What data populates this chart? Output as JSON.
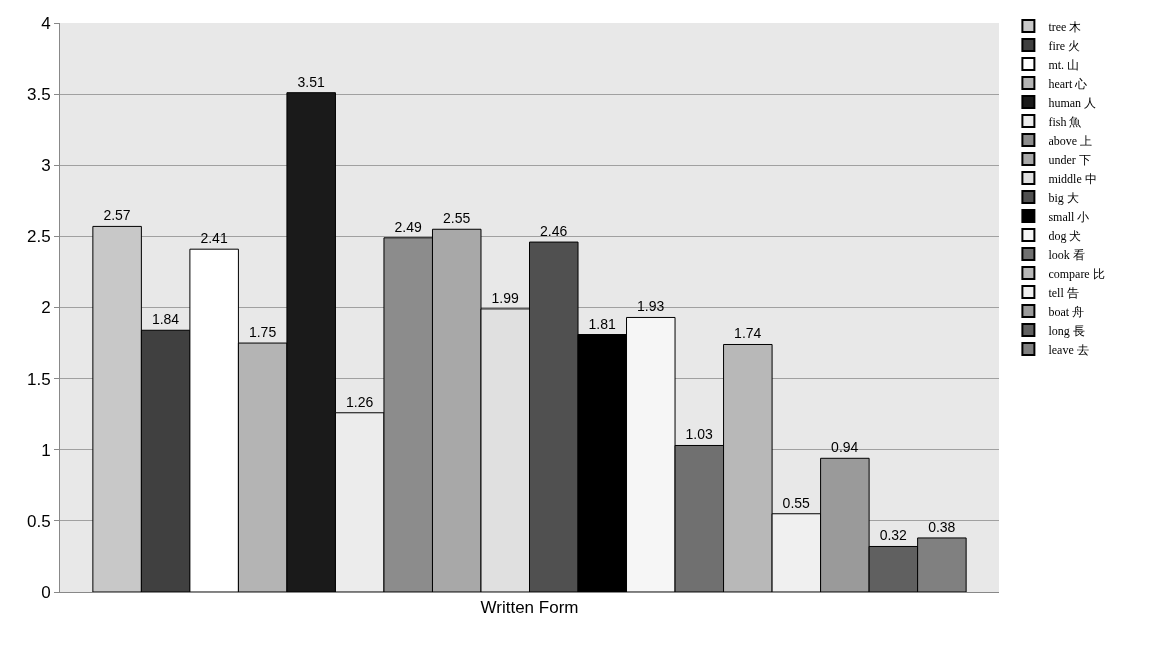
{
  "chart_data": {
    "type": "bar",
    "categories": [
      "Written Form"
    ],
    "ylim": [
      0,
      4
    ],
    "yticks": [
      0,
      0.5,
      1,
      1.5,
      2,
      2.5,
      3,
      3.5,
      4
    ],
    "grid": "y",
    "legend": "right",
    "data_labels": true,
    "series": [
      {
        "name": "tree 木",
        "color": "#c8c8c8",
        "values": [
          2.57
        ]
      },
      {
        "name": "fire 火",
        "color": "#404040",
        "values": [
          1.84
        ]
      },
      {
        "name": "mt. 山",
        "color": "#ffffff",
        "values": [
          2.41
        ]
      },
      {
        "name": "heart 心",
        "color": "#b4b4b4",
        "values": [
          1.75
        ]
      },
      {
        "name": "human 人",
        "color": "#1a1a1a",
        "values": [
          3.51
        ]
      },
      {
        "name": "fish 魚",
        "color": "#ececec",
        "values": [
          1.26
        ]
      },
      {
        "name": "above 上",
        "color": "#8c8c8c",
        "values": [
          2.49
        ]
      },
      {
        "name": "under 下",
        "color": "#a8a8a8",
        "values": [
          2.55
        ]
      },
      {
        "name": "middle 中",
        "color": "#e0e0e0",
        "values": [
          1.99
        ]
      },
      {
        "name": "big 大",
        "color": "#505050",
        "values": [
          2.46
        ]
      },
      {
        "name": "small 小",
        "color": "#000000",
        "values": [
          1.81
        ]
      },
      {
        "name": "dog 犬",
        "color": "#f6f6f6",
        "values": [
          1.93
        ]
      },
      {
        "name": "look 看",
        "color": "#707070",
        "values": [
          1.03
        ]
      },
      {
        "name": "compare 比",
        "color": "#b8b8b8",
        "values": [
          1.74
        ]
      },
      {
        "name": "tell 告",
        "color": "#f0f0f0",
        "values": [
          0.55
        ]
      },
      {
        "name": "boat 舟",
        "color": "#9a9a9a",
        "values": [
          0.94
        ]
      },
      {
        "name": "long 長",
        "color": "#606060",
        "values": [
          0.32
        ]
      },
      {
        "name": "leave 去",
        "color": "#808080",
        "values": [
          0.38
        ]
      }
    ]
  }
}
